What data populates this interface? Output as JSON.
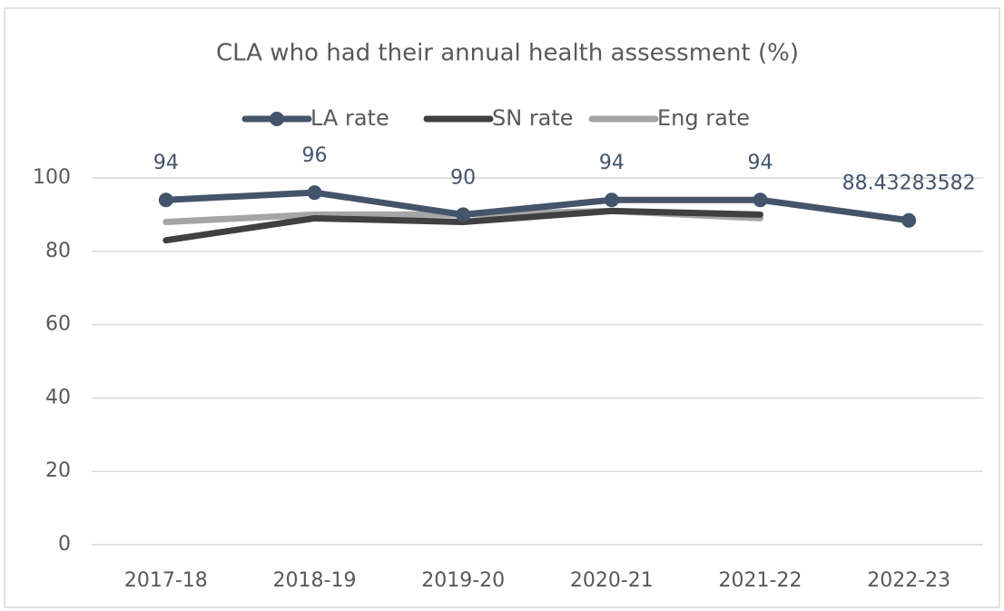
{
  "chart_data": {
    "type": "line",
    "title": "CLA who had their annual health assessment (%)",
    "categories": [
      "2017-18",
      "2018-19",
      "2019-20",
      "2020-21",
      "2021-22",
      "2022-23"
    ],
    "series": [
      {
        "name": "LA rate",
        "color": "#44546a",
        "values": [
          94,
          96,
          90,
          94,
          94,
          88.43283582
        ],
        "markers": true,
        "data_labels": true
      },
      {
        "name": "SN rate",
        "color": "#404040",
        "values": [
          83,
          89,
          88,
          91,
          90,
          null
        ]
      },
      {
        "name": "Eng rate",
        "color": "#a5a5a5",
        "values": [
          88,
          90,
          90,
          91,
          89,
          null
        ]
      }
    ],
    "ylim": [
      0,
      100
    ],
    "yticks": [
      0,
      20,
      40,
      60,
      80,
      100
    ],
    "grid": true,
    "legend": "top"
  }
}
